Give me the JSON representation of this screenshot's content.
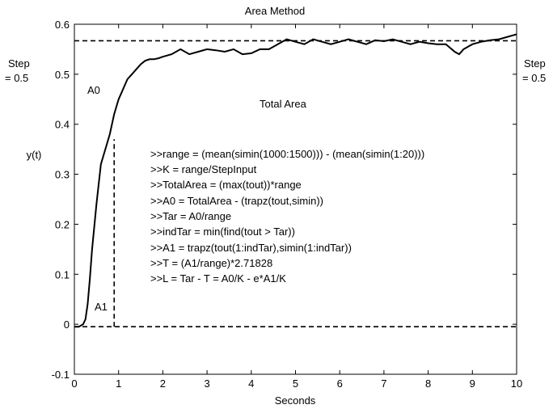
{
  "chart_data": {
    "type": "line",
    "title": "Area Method",
    "xlabel": "Seconds",
    "ylabel": "y(t)",
    "xlim": [
      0,
      10
    ],
    "ylim": [
      -0.1,
      0.6
    ],
    "xticks": [
      "0",
      "1",
      "2",
      "3",
      "4",
      "5",
      "6",
      "7",
      "8",
      "9",
      "10"
    ],
    "yticks": [
      "-0.1",
      "0",
      "0.1",
      "0.2",
      "0.3",
      "0.4",
      "0.5",
      "0.6"
    ],
    "grid": false,
    "series": [
      {
        "style": "solid",
        "x": [
          0,
          0.1,
          0.2,
          0.25,
          0.3,
          0.35,
          0.4,
          0.5,
          0.6,
          0.7,
          0.8,
          0.9,
          1.0,
          1.1,
          1.2,
          1.3,
          1.4,
          1.5,
          1.6,
          1.7,
          1.8,
          1.9,
          2.0,
          2.2,
          2.4,
          2.6,
          2.8,
          3.0,
          3.2,
          3.4,
          3.6,
          3.8,
          4.0,
          4.2,
          4.4,
          4.6,
          4.8,
          5.0,
          5.2,
          5.4,
          5.6,
          5.8,
          6.0,
          6.2,
          6.4,
          6.6,
          6.8,
          7.0,
          7.2,
          7.4,
          7.6,
          7.8,
          8.0,
          8.2,
          8.4,
          8.6,
          8.7,
          8.8,
          9.0,
          9.2,
          9.4,
          9.6,
          9.8,
          10.0
        ],
        "values": [
          -0.005,
          -0.005,
          0.0,
          0.01,
          0.04,
          0.09,
          0.15,
          0.24,
          0.32,
          0.35,
          0.38,
          0.42,
          0.45,
          0.47,
          0.49,
          0.5,
          0.51,
          0.52,
          0.527,
          0.53,
          0.53,
          0.532,
          0.535,
          0.54,
          0.55,
          0.54,
          0.545,
          0.55,
          0.548,
          0.545,
          0.55,
          0.54,
          0.542,
          0.55,
          0.55,
          0.56,
          0.57,
          0.565,
          0.56,
          0.57,
          0.565,
          0.56,
          0.565,
          0.57,
          0.565,
          0.56,
          0.568,
          0.566,
          0.57,
          0.565,
          0.56,
          0.565,
          0.562,
          0.56,
          0.56,
          0.545,
          0.54,
          0.55,
          0.56,
          0.565,
          0.568,
          0.57,
          0.575,
          0.58
        ]
      },
      {
        "style": "dashed",
        "x": [
          0,
          10
        ],
        "values": [
          0.567,
          0.567
        ]
      },
      {
        "style": "dashed",
        "x": [
          0,
          10
        ],
        "values": [
          -0.005,
          -0.005
        ]
      },
      {
        "style": "dashed",
        "x": [
          0.9,
          0.9
        ],
        "values": [
          -0.005,
          0.37
        ]
      }
    ],
    "annotations": [
      {
        "text": "Step",
        "pos": "left-upper"
      },
      {
        "text": "= 0.5",
        "pos": "left-upper"
      },
      {
        "text": "Step",
        "pos": "right-upper"
      },
      {
        "text": "= 0.5",
        "pos": "right-upper"
      },
      {
        "text": "A0",
        "x": 0.3,
        "y": 0.48
      },
      {
        "text": "A1",
        "x": 0.45,
        "y": -0.065
      },
      {
        "text": "Total Area",
        "x": 4.2,
        "y": 0.44
      }
    ],
    "code_lines": [
      ">>range = (mean(simin(1000:1500))) - (mean(simin(1:20)))",
      ">>K = range/StepInput",
      ">>TotalArea = (max(tout))*range",
      ">>A0 = TotalArea - (trapz(tout,simin))",
      ">>Tar = A0/range",
      ">>indTar = min(find(tout > Tar))",
      ">>A1 = trapz(tout(1:indTar),simin(1:indTar))",
      ">>T = (A1/range)*2.71828",
      ">>L = Tar - T = A0/K - e*A1/K"
    ]
  }
}
